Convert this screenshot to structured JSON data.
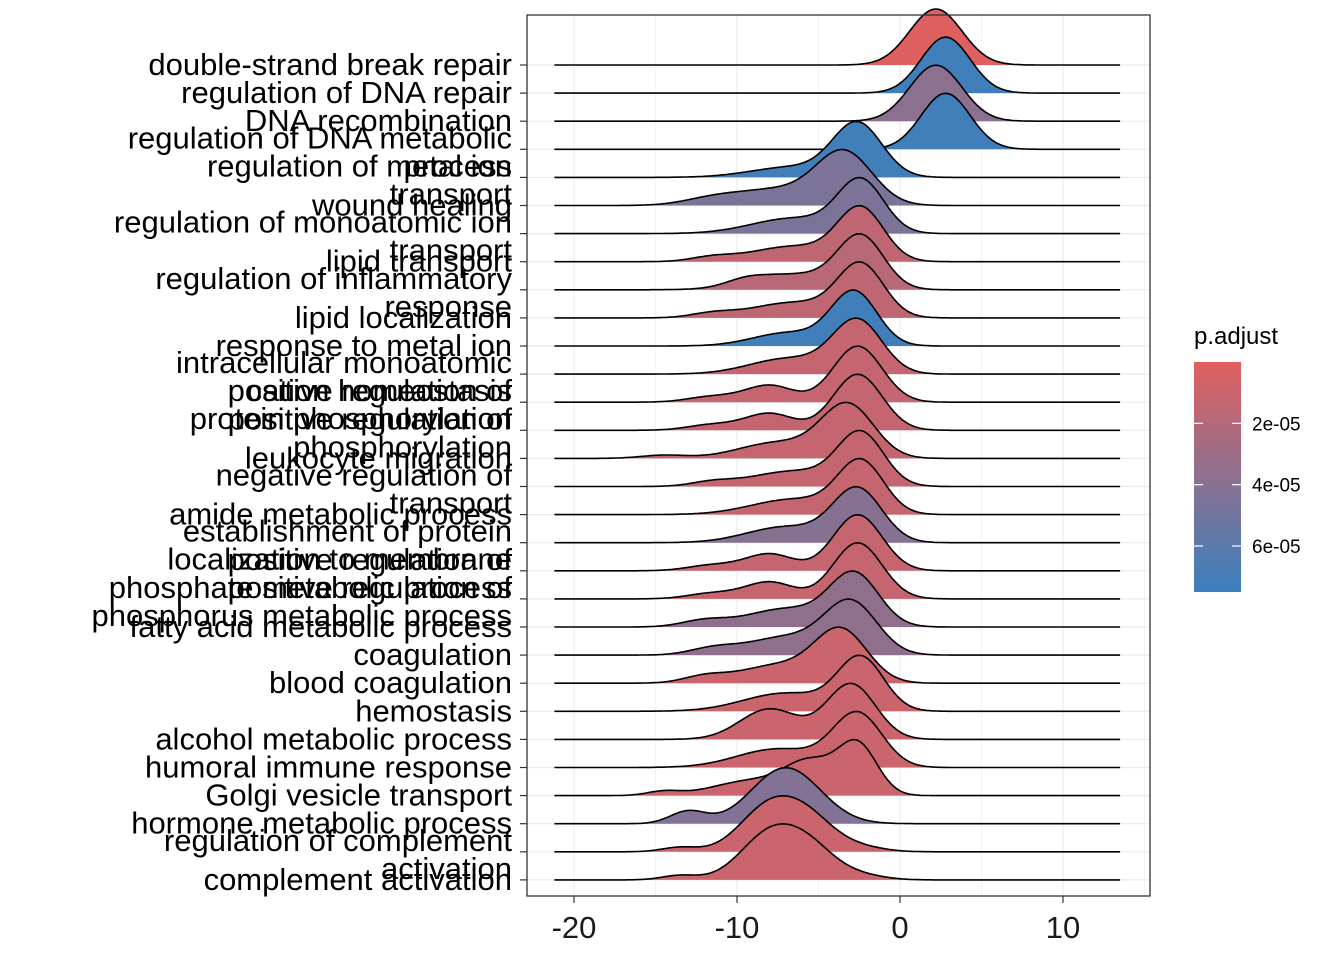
{
  "chart_data": {
    "type": "ridgeline",
    "x_range": [
      -23,
      15
    ],
    "x_ticks": [
      -20,
      -10,
      0,
      10
    ],
    "grid": true,
    "legend": {
      "title": "p.adjust",
      "position": "right",
      "ticks": [
        {
          "value": 2e-05,
          "label": "2e-05"
        },
        {
          "value": 4e-05,
          "label": "4e-05"
        },
        {
          "value": 6e-05,
          "label": "6e-05"
        }
      ],
      "range": [
        0.0,
        7.5e-05
      ],
      "low_color": "#E06060",
      "high_color": "#3A80BE"
    },
    "colors": {
      "panel_border": "#333333",
      "grid": "#ebebeb",
      "line": "#000000"
    },
    "rows": [
      {
        "label": "double-strand break repair",
        "label_lines": [
          "double-strand break repair"
        ],
        "peak": 2.2,
        "p_adjust": 1e-06,
        "comps": [
          [
            2.2,
            1.6,
            1.0
          ]
        ]
      },
      {
        "label": "regulation of DNA repair",
        "label_lines": [
          "regulation of DNA repair"
        ],
        "peak": 2.8,
        "p_adjust": 7.2e-05,
        "comps": [
          [
            2.8,
            1.5,
            1.0
          ]
        ]
      },
      {
        "label": "DNA recombination",
        "label_lines": [
          "DNA recombination"
        ],
        "peak": 2.2,
        "p_adjust": 3.8e-05,
        "comps": [
          [
            2.2,
            1.6,
            1.0
          ]
        ]
      },
      {
        "label": "regulation of DNA metabolic process",
        "label_lines": [
          "regulation of DNA metabolic",
          "process"
        ],
        "peak": 2.8,
        "p_adjust": 7.2e-05,
        "comps": [
          [
            2.8,
            1.5,
            1.0
          ]
        ]
      },
      {
        "label": "regulation of metal ion transport",
        "label_lines": [
          "regulation of metal ion",
          "transport"
        ],
        "peak": -2.6,
        "p_adjust": 7.2e-05,
        "comps": [
          [
            -2.6,
            1.5,
            1.0
          ],
          [
            -6.5,
            2.6,
            0.2
          ]
        ]
      },
      {
        "label": "wound healing",
        "label_lines": [
          "wound healing"
        ],
        "peak": -3.4,
        "p_adjust": 4.5e-05,
        "comps": [
          [
            -3.4,
            1.7,
            1.0
          ],
          [
            -7.5,
            2.5,
            0.3
          ],
          [
            -11.5,
            1.8,
            0.12
          ]
        ]
      },
      {
        "label": "regulation of monoatomic ion transport",
        "label_lines": [
          "regulation of monoatomic ion",
          "transport"
        ],
        "peak": -2.4,
        "p_adjust": 4.5e-05,
        "comps": [
          [
            -2.4,
            1.4,
            1.0
          ],
          [
            -6.5,
            2.6,
            0.3
          ]
        ]
      },
      {
        "label": "lipid transport",
        "label_lines": [
          "lipid transport"
        ],
        "peak": -2.4,
        "p_adjust": 1.5e-05,
        "comps": [
          [
            -2.4,
            1.4,
            1.0
          ],
          [
            -6.5,
            2.6,
            0.3
          ],
          [
            -11.5,
            1.3,
            0.08
          ]
        ]
      },
      {
        "label": "regulation of inflammatory response",
        "label_lines": [
          "regulation of inflammatory",
          "response"
        ],
        "peak": -2.4,
        "p_adjust": 1.8e-05,
        "comps": [
          [
            -2.4,
            1.4,
            1.0
          ],
          [
            -6.5,
            2.6,
            0.3
          ],
          [
            -9.5,
            1.2,
            0.1
          ]
        ]
      },
      {
        "label": "lipid localization",
        "label_lines": [
          "lipid localization"
        ],
        "peak": -2.4,
        "p_adjust": 1.5e-05,
        "comps": [
          [
            -2.4,
            1.4,
            1.0
          ],
          [
            -6.5,
            2.6,
            0.3
          ],
          [
            -11.5,
            1.3,
            0.08
          ]
        ]
      },
      {
        "label": "response to metal ion",
        "label_lines": [
          "response to metal ion"
        ],
        "peak": -2.8,
        "p_adjust": 7.2e-05,
        "comps": [
          [
            -2.8,
            1.4,
            1.0
          ],
          [
            -6.8,
            2.2,
            0.25
          ]
        ]
      },
      {
        "label": "intracellular monoatomic cation homeostasis",
        "label_lines": [
          "intracellular monoatomic",
          "cation homeostasis"
        ],
        "peak": -2.6,
        "p_adjust": 1.2e-05,
        "comps": [
          [
            -2.6,
            1.5,
            1.0
          ],
          [
            -6.8,
            2.4,
            0.3
          ]
        ]
      },
      {
        "label": "positive regulation of protein phosphorylation",
        "label_lines": [
          "positive regulation of",
          "protein phosphorylation"
        ],
        "peak": -2.6,
        "p_adjust": 1.2e-05,
        "comps": [
          [
            -2.6,
            1.5,
            1.0
          ],
          [
            -8.0,
            1.5,
            0.3
          ],
          [
            -11.5,
            1.5,
            0.1
          ]
        ]
      },
      {
        "label": "positive regulation of phosphorylation",
        "label_lines": [
          "positive regulation of",
          "phosphorylation"
        ],
        "peak": -2.6,
        "p_adjust": 1.2e-05,
        "comps": [
          [
            -2.6,
            1.5,
            1.0
          ],
          [
            -8.0,
            1.5,
            0.3
          ],
          [
            -11.5,
            1.5,
            0.1
          ]
        ]
      },
      {
        "label": "leukocyte migration",
        "label_lines": [
          "leukocyte migration"
        ],
        "peak": -3.2,
        "p_adjust": 1.2e-05,
        "comps": [
          [
            -3.2,
            1.6,
            1.0
          ],
          [
            -7.5,
            2.4,
            0.3
          ],
          [
            -14.5,
            1.4,
            0.06
          ]
        ]
      },
      {
        "label": "negative regulation of transport",
        "label_lines": [
          "negative regulation of",
          "transport"
        ],
        "peak": -2.4,
        "p_adjust": 1.2e-05,
        "comps": [
          [
            -2.4,
            1.4,
            1.0
          ],
          [
            -6.5,
            2.6,
            0.3
          ],
          [
            -11.5,
            1.3,
            0.08
          ]
        ]
      },
      {
        "label": "amide metabolic process",
        "label_lines": [
          "amide metabolic process"
        ],
        "peak": -2.4,
        "p_adjust": 1.2e-05,
        "comps": [
          [
            -2.4,
            1.4,
            1.0
          ],
          [
            -6.5,
            2.6,
            0.3
          ]
        ]
      },
      {
        "label": "establishment of protein localization to membrane",
        "label_lines": [
          "establishment of protein",
          "localization to membrane"
        ],
        "peak": -2.6,
        "p_adjust": 4e-05,
        "comps": [
          [
            -2.6,
            1.5,
            1.0
          ],
          [
            -7.0,
            2.4,
            0.3
          ]
        ]
      },
      {
        "label": "positive regulation of phosphate metabolic process",
        "label_lines": [
          "positive regulation of",
          "phosphate metabolic process"
        ],
        "peak": -2.6,
        "p_adjust": 1.2e-05,
        "comps": [
          [
            -2.6,
            1.5,
            1.0
          ],
          [
            -8.0,
            1.5,
            0.3
          ],
          [
            -11.5,
            1.5,
            0.1
          ]
        ]
      },
      {
        "label": "positive regulation of phosphorus metabolic process",
        "label_lines": [
          "positive regulation of",
          "phosphorus metabolic process"
        ],
        "peak": -2.6,
        "p_adjust": 1.2e-05,
        "comps": [
          [
            -2.6,
            1.5,
            1.0
          ],
          [
            -8.0,
            1.5,
            0.3
          ],
          [
            -11.5,
            1.5,
            0.1
          ]
        ]
      },
      {
        "label": "fatty acid metabolic process",
        "label_lines": [
          "fatty acid metabolic process"
        ],
        "peak": -2.8,
        "p_adjust": 3.6e-05,
        "comps": [
          [
            -2.8,
            1.5,
            1.0
          ],
          [
            -7.0,
            2.4,
            0.35
          ],
          [
            -12.0,
            1.4,
            0.12
          ]
        ]
      },
      {
        "label": "coagulation",
        "label_lines": [
          "coagulation"
        ],
        "peak": -3.0,
        "p_adjust": 3.6e-05,
        "comps": [
          [
            -3.0,
            1.6,
            1.0
          ],
          [
            -7.0,
            2.4,
            0.35
          ],
          [
            -11.5,
            1.4,
            0.12
          ]
        ]
      },
      {
        "label": "blood coagulation",
        "label_lines": [
          "blood coagulation"
        ],
        "peak": -3.6,
        "p_adjust": 1e-05,
        "comps": [
          [
            -3.6,
            1.6,
            1.0
          ],
          [
            -7.5,
            2.4,
            0.35
          ],
          [
            -12.0,
            1.3,
            0.12
          ]
        ]
      },
      {
        "label": "hemostasis",
        "label_lines": [
          "hemostasis"
        ],
        "peak": -2.4,
        "p_adjust": 1e-05,
        "comps": [
          [
            -2.4,
            1.4,
            1.0
          ],
          [
            -7.0,
            2.6,
            0.35
          ]
        ]
      },
      {
        "label": "alcohol metabolic process",
        "label_lines": [
          "alcohol metabolic process"
        ],
        "peak": -3.0,
        "p_adjust": 1e-05,
        "comps": [
          [
            -3.0,
            1.5,
            1.0
          ],
          [
            -8.0,
            1.8,
            0.55
          ]
        ]
      },
      {
        "label": "humoral immune response",
        "label_lines": [
          "humoral immune response"
        ],
        "peak": -2.6,
        "p_adjust": 1e-05,
        "comps": [
          [
            -2.6,
            1.5,
            1.0
          ],
          [
            -7.5,
            2.5,
            0.35
          ]
        ]
      },
      {
        "label": "Golgi vesicle transport",
        "label_lines": [
          "Golgi vesicle transport"
        ],
        "peak": -2.6,
        "p_adjust": 1e-05,
        "comps": [
          [
            -2.6,
            1.2,
            1.0
          ],
          [
            -5.5,
            1.5,
            0.6
          ],
          [
            -9.0,
            2.4,
            0.3
          ],
          [
            -14.5,
            1.0,
            0.08
          ]
        ]
      },
      {
        "label": "hormone metabolic process",
        "label_lines": [
          "hormone metabolic process"
        ],
        "peak": -7.0,
        "p_adjust": 4.2e-05,
        "comps": [
          [
            -7.0,
            2.1,
            1.0
          ],
          [
            -13.0,
            1.1,
            0.22
          ]
        ]
      },
      {
        "label": "regulation of complement activation",
        "label_lines": [
          "regulation of complement",
          "activation"
        ],
        "peak": -8.0,
        "p_adjust": 1e-05,
        "comps": [
          [
            -8.0,
            1.8,
            1.0
          ],
          [
            -5.5,
            1.6,
            0.6
          ],
          [
            -13.5,
            1.1,
            0.1
          ],
          [
            -2.5,
            1.5,
            0.1
          ]
        ]
      },
      {
        "label": "complement activation",
        "label_lines": [
          "complement activation"
        ],
        "peak": -8.0,
        "p_adjust": 1e-05,
        "comps": [
          [
            -8.0,
            1.8,
            1.0
          ],
          [
            -5.5,
            1.6,
            0.6
          ],
          [
            -13.5,
            1.1,
            0.1
          ],
          [
            -2.5,
            1.5,
            0.1
          ]
        ]
      }
    ]
  }
}
